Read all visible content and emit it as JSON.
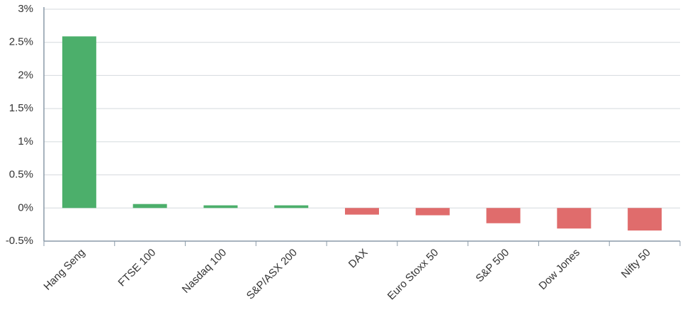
{
  "chart_data": {
    "type": "bar",
    "categories": [
      "Hang Seng",
      "FTSE 100",
      "Nasdaq 100",
      "S&P/ASX 200",
      "DAX",
      "Euro Stoxx 50",
      "S&P 500",
      "Dow Jones",
      "Nifty 50"
    ],
    "values": [
      2.59,
      0.06,
      0.04,
      0.04,
      -0.1,
      -0.11,
      -0.23,
      -0.31,
      -0.34
    ],
    "positive_color": "#4caf6b",
    "negative_color": "#e06c6c",
    "ylim": [
      -0.5,
      3
    ],
    "yticks": [
      {
        "value": -0.5,
        "label": "-0.5%"
      },
      {
        "value": 0,
        "label": "0%"
      },
      {
        "value": 0.5,
        "label": "0.5%"
      },
      {
        "value": 1,
        "label": "1%"
      },
      {
        "value": 1.5,
        "label": "1.5%"
      },
      {
        "value": 2,
        "label": "2%"
      },
      {
        "value": 2.5,
        "label": "2.5%"
      },
      {
        "value": 3,
        "label": "3%"
      }
    ],
    "grid": true
  }
}
